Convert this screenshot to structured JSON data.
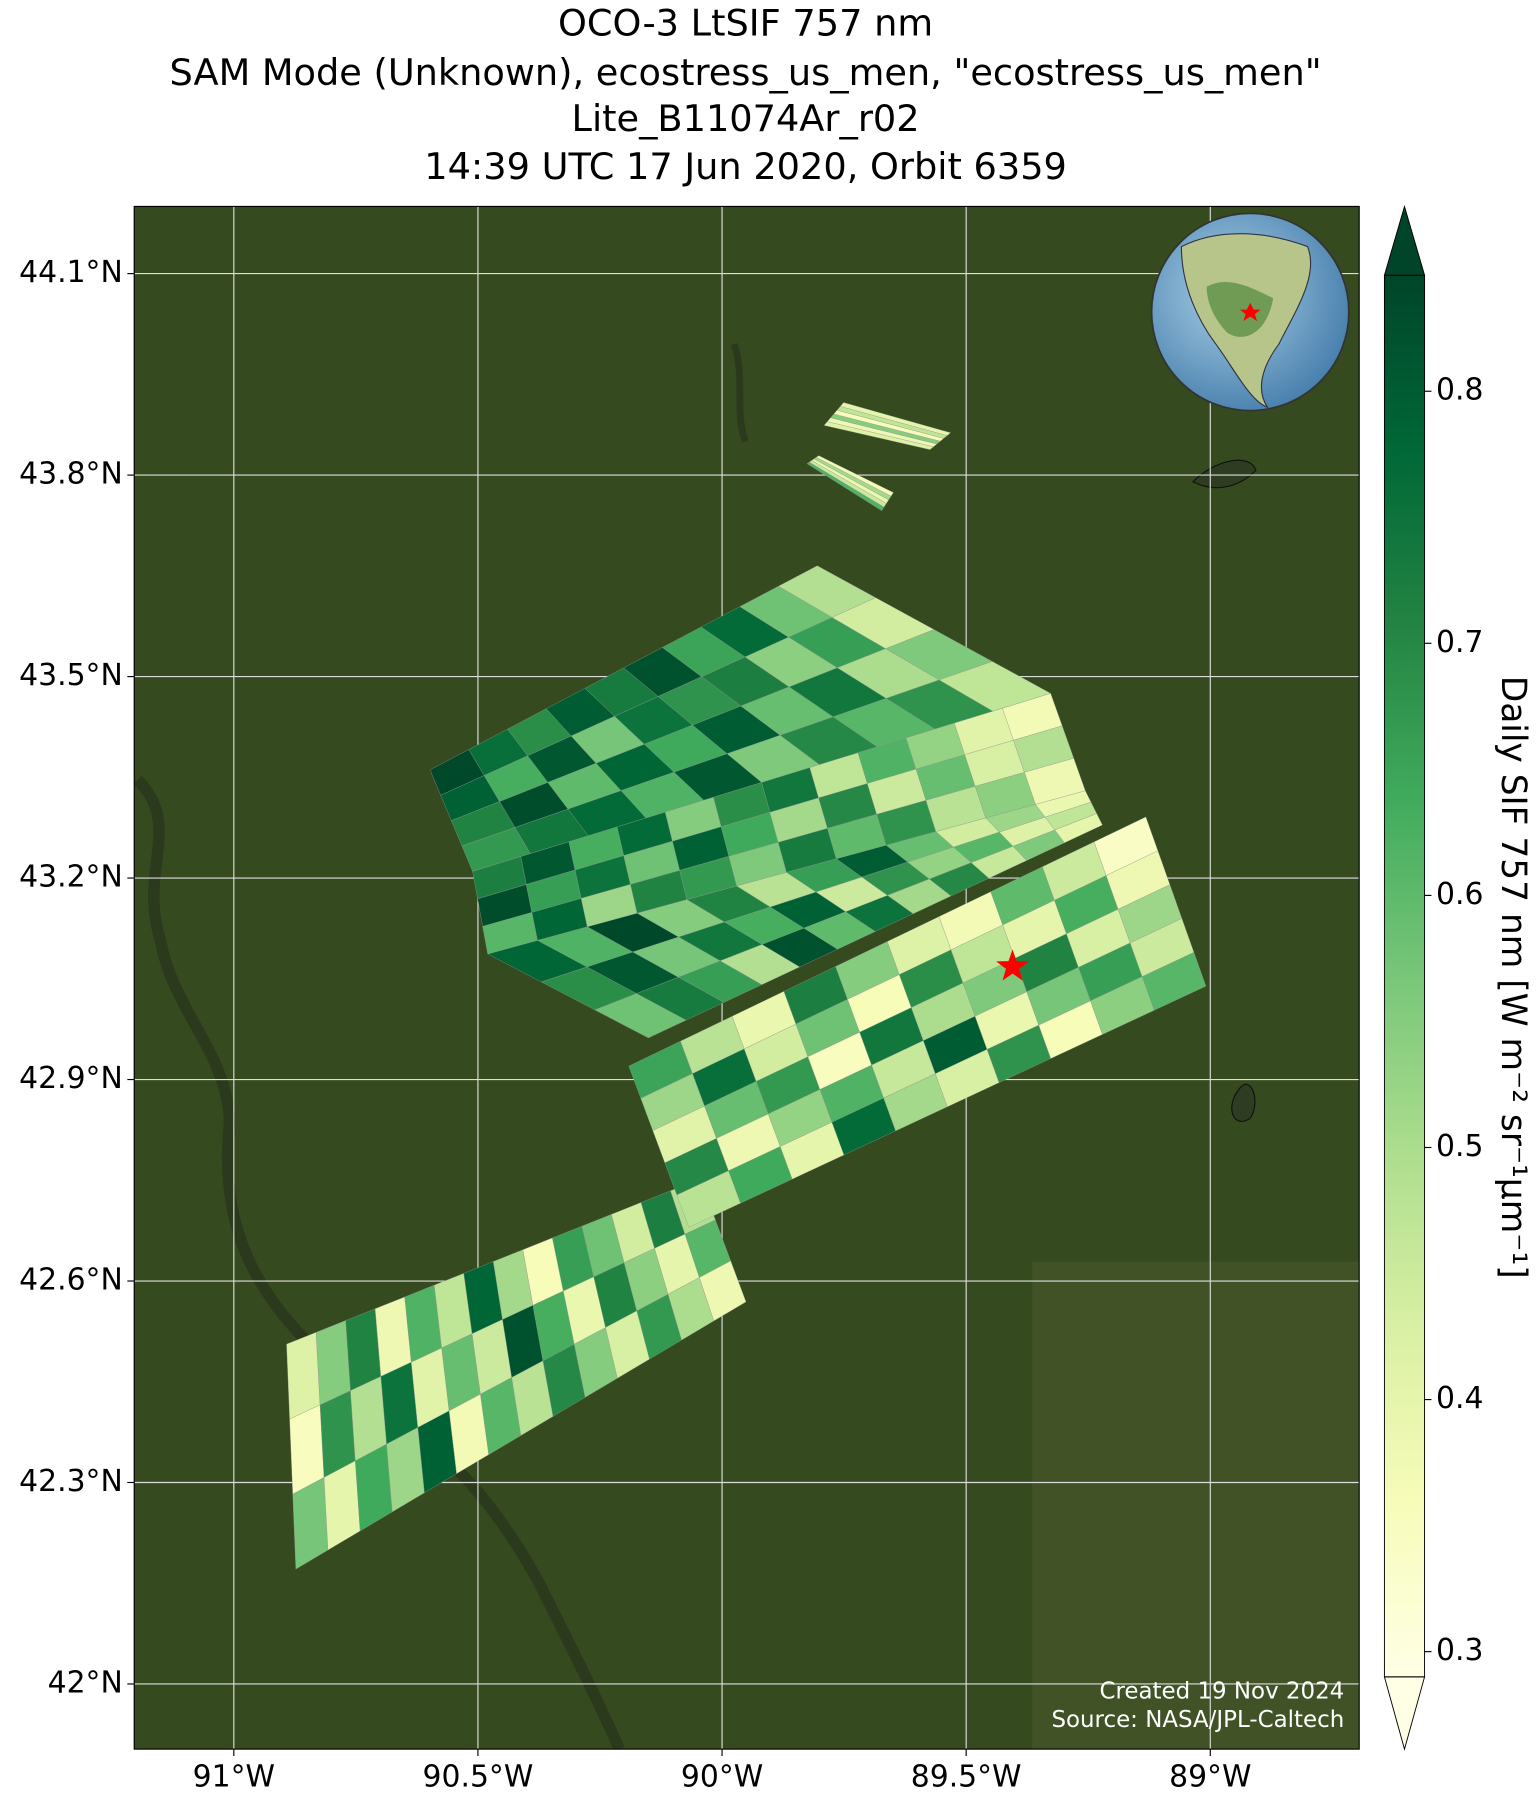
{
  "chart_data": {
    "type": "swath_map",
    "title": [
      "OCO-3 LtSIF 757 nm",
      "SAM Mode (Unknown), ecostress_us_men, \"ecostress_us_men\"",
      "Lite_B11074Ar_r02",
      "14:39 UTC 17 Jun 2020, Orbit 6359"
    ],
    "xlim": [
      -91.204,
      -88.695
    ],
    "ylim": [
      41.903,
      44.2
    ],
    "xticks": [
      {
        "value": -91,
        "label": "91°W"
      },
      {
        "value": -90.5,
        "label": "90.5°W"
      },
      {
        "value": -90,
        "label": "90°W"
      },
      {
        "value": -89.5,
        "label": "89.5°W"
      },
      {
        "value": -89,
        "label": "89°W"
      }
    ],
    "yticks": [
      {
        "value": 42,
        "label": "42°N"
      },
      {
        "value": 42.3,
        "label": "42.3°N"
      },
      {
        "value": 42.6,
        "label": "42.6°N"
      },
      {
        "value": 42.9,
        "label": "42.9°N"
      },
      {
        "value": 43.2,
        "label": "43.2°N"
      },
      {
        "value": 43.5,
        "label": "43.5°N"
      },
      {
        "value": 43.8,
        "label": "43.8°N"
      },
      {
        "value": 44.1,
        "label": "44.1°N"
      }
    ],
    "grid": true,
    "colorbar_label": "Daily SIF 757 nm [W m⁻² sr⁻¹μm⁻¹]",
    "clim": [
      0.29,
      0.846
    ],
    "cticks": [
      0.3,
      0.4,
      0.5,
      0.6,
      0.7,
      0.8
    ],
    "colormap": [
      "#ffffe5",
      "#f7fcb9",
      "#d9f0a3",
      "#addd8e",
      "#78c679",
      "#41ab5d",
      "#238443",
      "#006837",
      "#004529"
    ],
    "marker": {
      "lon": -89.405,
      "lat": 43.068,
      "color": "#ff0000"
    },
    "annotations": [
      "Created 19 Nov 2024",
      "Source: NASA/JPL-Caltech"
    ],
    "swaths": [
      {
        "corners": [
          [
            -90.892,
            42.506
          ],
          [
            -90.045,
            42.752
          ],
          [
            -89.951,
            42.569
          ],
          [
            -90.873,
            42.171
          ]
        ],
        "values": [
          [
            0.42,
            0.55,
            0.71,
            0.38,
            0.62,
            0.47,
            0.78,
            0.51,
            0.36,
            0.66,
            0.58,
            0.44,
            0.72,
            0.49
          ],
          [
            0.35,
            0.68,
            0.49,
            0.75,
            0.41,
            0.59,
            0.45,
            0.82,
            0.63,
            0.39,
            0.71,
            0.54,
            0.4,
            0.61
          ],
          [
            0.57,
            0.4,
            0.64,
            0.52,
            0.79,
            0.37,
            0.61,
            0.48,
            0.7,
            0.55,
            0.43,
            0.67,
            0.5,
            0.38
          ]
        ]
      },
      {
        "corners": [
          [
            -90.191,
            42.92
          ],
          [
            -89.132,
            43.291
          ],
          [
            -89.009,
            43.039
          ],
          [
            -90.068,
            42.68
          ]
        ],
        "values": [
          [
            0.65,
            0.48,
            0.39,
            0.72,
            0.55,
            0.42,
            0.37,
            0.6,
            0.45,
            0.34
          ],
          [
            0.52,
            0.76,
            0.44,
            0.58,
            0.36,
            0.69,
            0.47,
            0.4,
            0.63,
            0.38
          ],
          [
            0.41,
            0.59,
            0.67,
            0.35,
            0.74,
            0.5,
            0.56,
            0.71,
            0.43,
            0.52
          ],
          [
            0.7,
            0.38,
            0.53,
            0.62,
            0.46,
            0.8,
            0.39,
            0.57,
            0.66,
            0.45
          ],
          [
            0.48,
            0.64,
            0.4,
            0.77,
            0.51,
            0.43,
            0.68,
            0.36,
            0.54,
            0.61
          ]
        ]
      },
      {
        "corners": [
          [
            -90.48,
            43.087
          ],
          [
            -89.256,
            43.33
          ],
          [
            -89.221,
            43.279
          ],
          [
            -90.151,
            42.962
          ]
        ],
        "values": [
          [
            0.78,
            0.62,
            0.84,
            0.55,
            0.71,
            0.48,
            0.66,
            0.8,
            0.59,
            0.44,
            0.52,
            0.39
          ],
          [
            0.69,
            0.81,
            0.57,
            0.74,
            0.63,
            0.79,
            0.45,
            0.68,
            0.53,
            0.61,
            0.42,
            0.47
          ],
          [
            0.58,
            0.73,
            0.66,
            0.49,
            0.82,
            0.6,
            0.75,
            0.51,
            0.7,
            0.46,
            0.56,
            0.4
          ]
        ]
      },
      {
        "corners": [
          [
            -90.511,
            43.21
          ],
          [
            -89.327,
            43.475
          ],
          [
            -89.256,
            43.33
          ],
          [
            -90.48,
            43.087
          ]
        ],
        "values": [
          [
            0.72,
            0.81,
            0.63,
            0.77,
            0.55,
            0.69,
            0.74,
            0.47,
            0.62,
            0.53,
            0.41,
            0.37
          ],
          [
            0.83,
            0.66,
            0.75,
            0.58,
            0.79,
            0.64,
            0.51,
            0.7,
            0.45,
            0.59,
            0.43,
            0.49
          ],
          [
            0.61,
            0.78,
            0.52,
            0.71,
            0.67,
            0.56,
            0.73,
            0.6,
            0.68,
            0.48,
            0.54,
            0.38
          ]
        ]
      },
      {
        "corners": [
          [
            -90.598,
            43.361
          ],
          [
            -89.805,
            43.665
          ],
          [
            -89.327,
            43.475
          ],
          [
            -90.511,
            43.21
          ]
        ],
        "values": [
          [
            0.84,
            0.76,
            0.69,
            0.8,
            0.73,
            0.82,
            0.65,
            0.77,
            0.58,
            0.49
          ],
          [
            0.79,
            0.63,
            0.81,
            0.57,
            0.75,
            0.68,
            0.72,
            0.54,
            0.66,
            0.44
          ],
          [
            0.71,
            0.83,
            0.6,
            0.78,
            0.64,
            0.8,
            0.59,
            0.74,
            0.5,
            0.56
          ],
          [
            0.67,
            0.74,
            0.77,
            0.62,
            0.81,
            0.56,
            0.7,
            0.61,
            0.68,
            0.47
          ]
        ]
      },
      {
        "corners": [
          [
            -89.791,
            43.874
          ],
          [
            -89.751,
            43.908
          ],
          [
            -89.532,
            43.863
          ],
          [
            -89.574,
            43.838
          ]
        ],
        "values": [
          [
            0.42,
            0.38,
            0.55,
            0.36,
            0.47,
            0.4
          ]
        ]
      },
      {
        "corners": [
          [
            -89.826,
            43.817
          ],
          [
            -89.802,
            43.829
          ],
          [
            -89.649,
            43.774
          ],
          [
            -89.673,
            43.747
          ]
        ],
        "values": [
          [
            0.62,
            0.45,
            0.39,
            0.51,
            0.37
          ]
        ]
      }
    ]
  }
}
